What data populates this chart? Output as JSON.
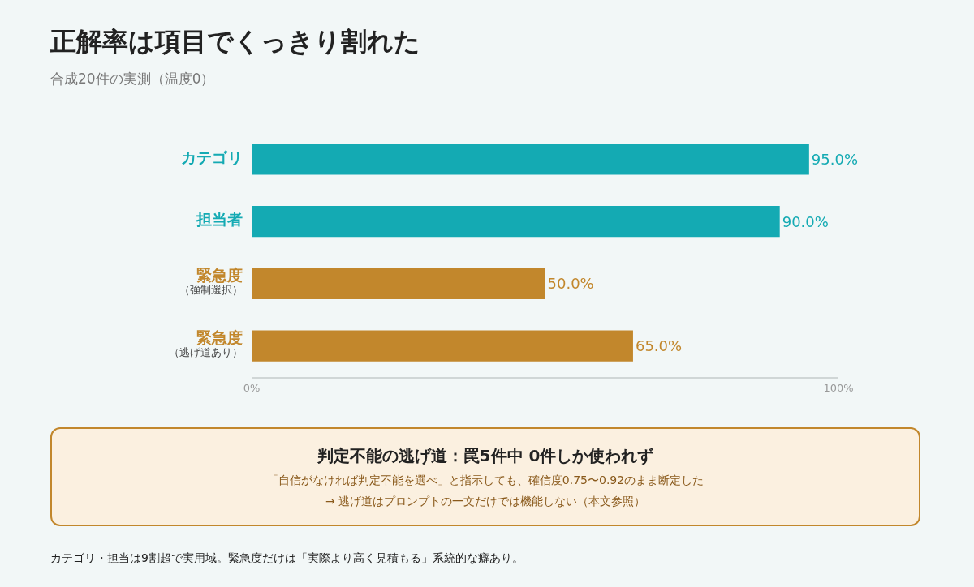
{
  "chart_data": {
    "type": "bar",
    "orientation": "horizontal",
    "title": "正解率は項目でくっきり割れた",
    "subtitle": "合成20件の実測（温度0）",
    "categories": [
      "カテゴリ",
      "担当者",
      "緊急度（強制選択）",
      "緊急度（逃げ道あり）"
    ],
    "values": [
      95,
      90,
      50,
      65
    ],
    "value_labels": [
      "95.0%",
      "90.0%",
      "50.0%",
      "65.0%"
    ],
    "colors": [
      "#14aab3",
      "#14aab3",
      "#c2872c",
      "#c2872c"
    ],
    "xlim": [
      0,
      100
    ],
    "xticks": [
      {
        "value": 0,
        "label": "0%"
      },
      {
        "value": 100,
        "label": "100%"
      }
    ],
    "annotations": [
      "判定不能の逃げ道：罠5件中 0件しか使われず",
      "「自信がなければ判定不能を選べ」と指示しても、確信度0.75〜0.92のまま断定した",
      "→ 逃げ道はプロンプトの一文だけでは機能しない（本文参照）",
      "カテゴリ・担当は9割超で実用域。緊急度だけは「実際より高く見積もる」系統的な癖あり。"
    ]
  }
}
